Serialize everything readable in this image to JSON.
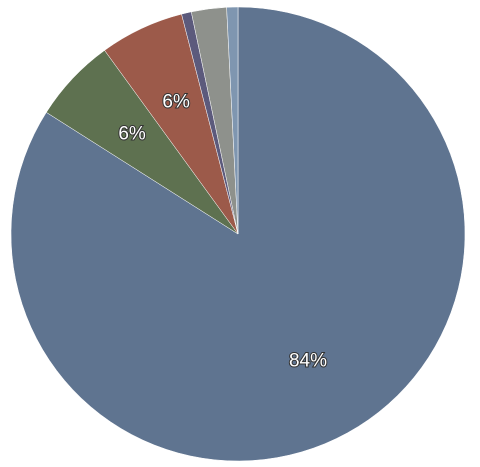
{
  "chart_data": {
    "type": "pie",
    "categories": [
      null,
      null,
      null,
      null,
      null,
      null
    ],
    "values": [
      84,
      6,
      6,
      0.7,
      2.5,
      0.8
    ],
    "value_labels": [
      "84%",
      "6%",
      "6%",
      null,
      null,
      null
    ],
    "colors": [
      "#5f7490",
      "#5e7150",
      "#9c5a4a",
      "#5c5a7c",
      "#8e918c",
      "#7f96b0"
    ]
  }
}
